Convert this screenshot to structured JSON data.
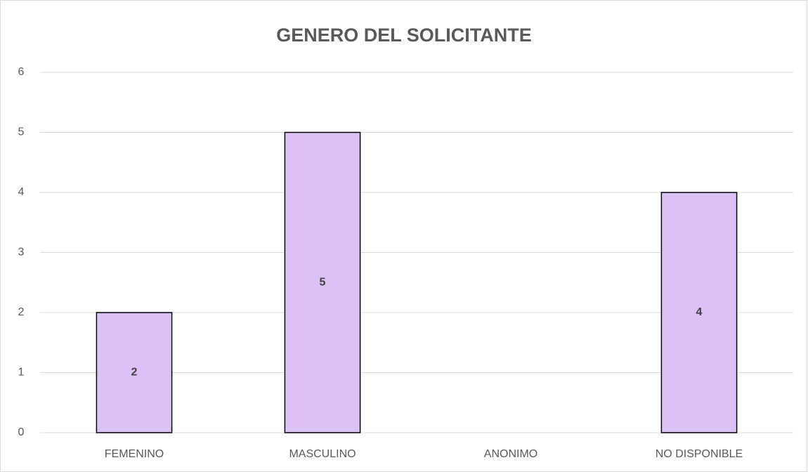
{
  "chart_data": {
    "type": "bar",
    "title": "GENERO DEL SOLICITANTE",
    "categories": [
      "FEMENINO",
      "MASCULINO",
      "ANONIMO",
      "NO DISPONIBLE"
    ],
    "values": [
      2,
      5,
      0,
      4
    ],
    "color": "#dbc1f5",
    "ylim": [
      0,
      6
    ],
    "yticks": [
      0,
      1,
      2,
      3,
      4,
      5,
      6
    ],
    "grid": true
  }
}
